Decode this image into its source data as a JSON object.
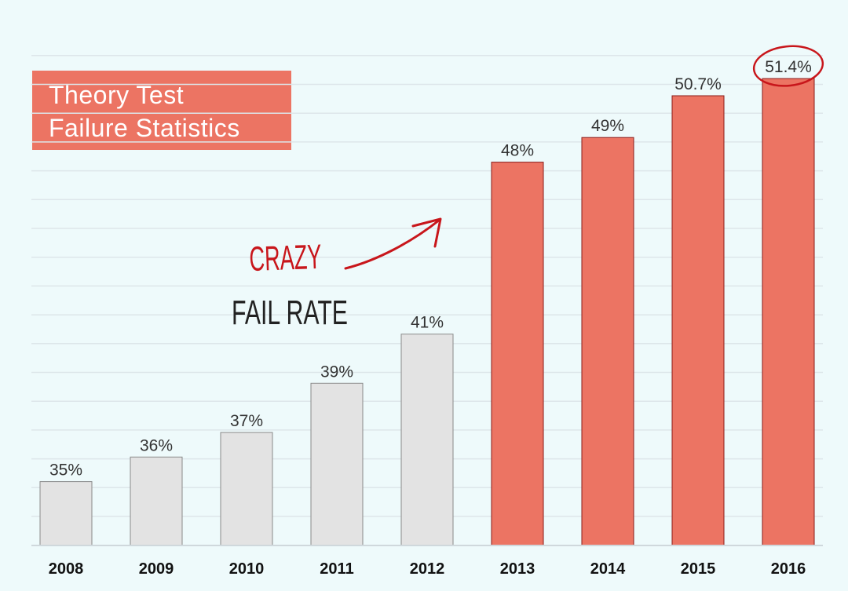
{
  "title": {
    "line1": "Theory Test",
    "line2": "Failure Statistics"
  },
  "annotation": {
    "line1": "CRAZY",
    "line2": "FAIL RATE"
  },
  "colors": {
    "background": "#eefafb",
    "highlight": "#ec7463",
    "highlight_border": "#8a1c1a",
    "normal": "#e3e3e3",
    "normal_border": "#8a8a8a",
    "gridline": "#dde6ea",
    "annotation_red": "#c8161b"
  },
  "chart_data": {
    "type": "bar",
    "title": "Theory Test Failure Statistics",
    "xlabel": "",
    "ylabel": "",
    "categories": [
      "2008",
      "2009",
      "2010",
      "2011",
      "2012",
      "2013",
      "2014",
      "2015",
      "2016"
    ],
    "values": [
      35,
      36,
      37,
      39,
      41,
      48,
      49,
      50.7,
      51.4
    ],
    "value_labels": [
      "35%",
      "36%",
      "37%",
      "39%",
      "41%",
      "48%",
      "49%",
      "50.7%",
      "51.4%"
    ],
    "highlighted": [
      false,
      false,
      false,
      false,
      false,
      true,
      true,
      true,
      true
    ],
    "circled_index": 8,
    "ylim": [
      32.4,
      53.0
    ],
    "grid": true,
    "legend": "none"
  }
}
